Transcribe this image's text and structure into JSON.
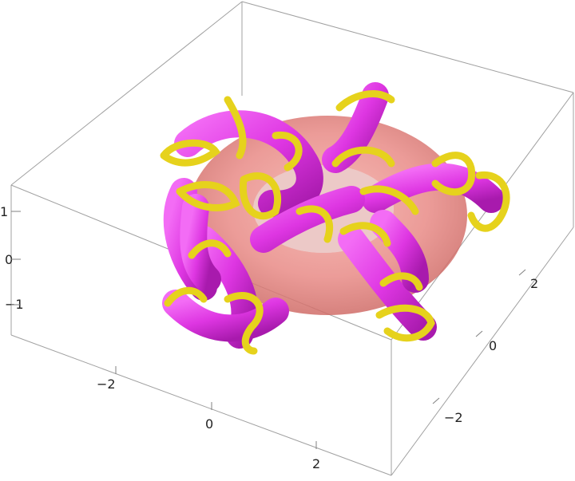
{
  "figure": {
    "kind": "3D tube knot plot (torus with winding tubes)",
    "colors": {
      "background": "#ffffff",
      "box_edge": "#9a9a9a",
      "torus": "#e88a86",
      "magenta_tube": "#e23fe6",
      "yellow_tube": "#e6d21c"
    }
  },
  "axes": {
    "z": {
      "ticks": [
        "1",
        "0",
        "−1"
      ]
    },
    "x": {
      "ticks": [
        "−2",
        "0",
        "2"
      ]
    },
    "y": {
      "ticks": [
        "2",
        "0",
        "−2"
      ]
    }
  }
}
